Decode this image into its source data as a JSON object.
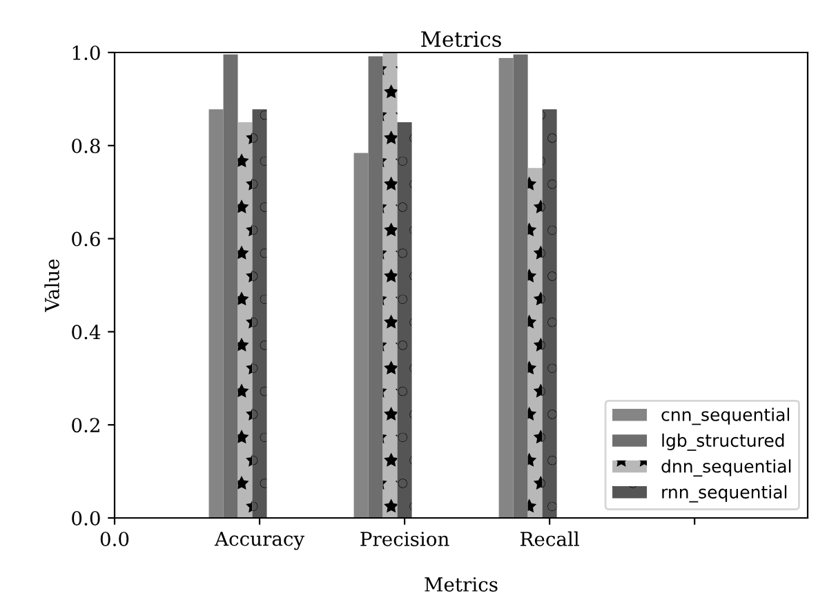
{
  "chart_data": {
    "type": "bar",
    "title": "Metrics",
    "xlabel": "Metrics",
    "ylabel": "Value",
    "categories": [
      "0.0",
      "Accuracy",
      "Precision",
      "Recall",
      null
    ],
    "series": [
      {
        "name": "cnn_sequential",
        "color": "#858585",
        "values": [
          null,
          0.878,
          0.784,
          0.988,
          null
        ]
      },
      {
        "name": "lgb_structured",
        "color": "#6e6e6e",
        "values": [
          null,
          0.996,
          0.992,
          0.996,
          null
        ]
      },
      {
        "name": "dnn_sequential",
        "color": "#b8b8b8",
        "values": [
          null,
          0.85,
          1.0,
          0.752,
          null
        ]
      },
      {
        "name": "rnn_sequential",
        "color": "#555555",
        "values": [
          null,
          0.878,
          0.85,
          0.878,
          null
        ]
      }
    ],
    "ylim": [
      0,
      1
    ],
    "yticks": [
      {
        "value": 0,
        "label": "0.0"
      },
      {
        "value": 0.2,
        "label": "0.2"
      },
      {
        "value": 0.4,
        "label": "0.4"
      },
      {
        "value": 0.6,
        "label": "0.6"
      },
      {
        "value": 0.8,
        "label": "0.8"
      },
      {
        "value": 1.0,
        "label": "1.0"
      }
    ],
    "legend": "lower right",
    "grid": false
  }
}
